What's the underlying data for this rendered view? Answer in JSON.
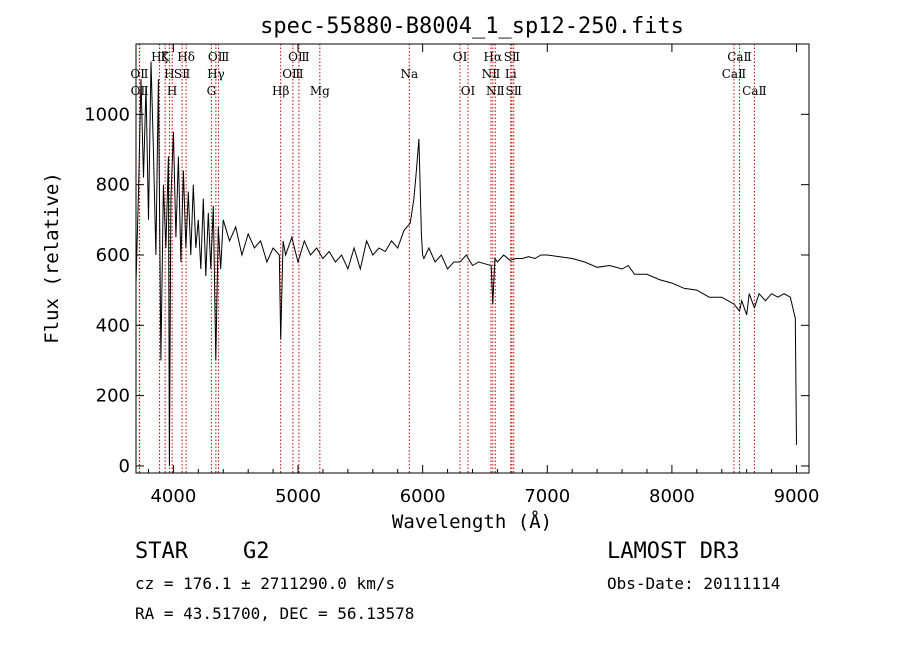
{
  "chart_data": {
    "type": "line",
    "title": "spec-55880-B8004_1_sp12-250.fits",
    "xlabel": "Wavelength (Å)",
    "ylabel": "Flux (relative)",
    "xlim": [
      3700,
      9100
    ],
    "ylim": [
      -20,
      1200
    ],
    "x_ticks": [
      4000,
      5000,
      6000,
      7000,
      8000,
      9000
    ],
    "y_ticks": [
      0,
      200,
      400,
      600,
      800,
      1000
    ],
    "series": [
      {
        "name": "flux",
        "color": "#000000",
        "x": [
          3700,
          3720,
          3740,
          3760,
          3780,
          3800,
          3820,
          3840,
          3860,
          3880,
          3900,
          3920,
          3940,
          3960,
          3968,
          3980,
          4000,
          4020,
          4040,
          4060,
          4080,
          4100,
          4120,
          4140,
          4160,
          4180,
          4200,
          4220,
          4240,
          4260,
          4280,
          4300,
          4320,
          4340,
          4360,
          4380,
          4400,
          4450,
          4500,
          4550,
          4600,
          4650,
          4700,
          4750,
          4800,
          4850,
          4861,
          4880,
          4900,
          4950,
          5000,
          5050,
          5100,
          5150,
          5200,
          5250,
          5300,
          5350,
          5400,
          5450,
          5500,
          5550,
          5600,
          5650,
          5700,
          5750,
          5800,
          5850,
          5900,
          5930,
          5950,
          5970,
          5990,
          6000,
          6010,
          6050,
          6100,
          6150,
          6200,
          6250,
          6300,
          6350,
          6400,
          6450,
          6500,
          6550,
          6563,
          6580,
          6600,
          6650,
          6700,
          6750,
          6800,
          6850,
          6900,
          6950,
          7000,
          7100,
          7200,
          7300,
          7400,
          7500,
          7600,
          7650,
          7700,
          7800,
          7900,
          8000,
          8100,
          8200,
          8300,
          8400,
          8450,
          8500,
          8542,
          8560,
          8600,
          8620,
          8662,
          8700,
          8750,
          8800,
          8850,
          8900,
          8950,
          8990,
          9000
        ],
        "values": [
          520,
          780,
          1100,
          820,
          1080,
          700,
          1150,
          900,
          600,
          1100,
          300,
          800,
          620,
          880,
          0,
          760,
          950,
          650,
          880,
          580,
          840,
          620,
          780,
          600,
          800,
          620,
          700,
          560,
          760,
          540,
          720,
          560,
          740,
          300,
          680,
          560,
          700,
          640,
          680,
          600,
          660,
          620,
          640,
          580,
          620,
          600,
          360,
          640,
          600,
          650,
          580,
          640,
          600,
          620,
          590,
          610,
          580,
          600,
          560,
          620,
          560,
          640,
          600,
          620,
          610,
          640,
          620,
          670,
          690,
          760,
          840,
          930,
          660,
          600,
          590,
          620,
          580,
          600,
          560,
          580,
          580,
          600,
          570,
          580,
          575,
          570,
          460,
          590,
          580,
          600,
          585,
          590,
          590,
          595,
          590,
          600,
          600,
          595,
          590,
          580,
          565,
          570,
          560,
          570,
          545,
          545,
          530,
          520,
          505,
          500,
          480,
          480,
          470,
          460,
          440,
          470,
          430,
          490,
          450,
          490,
          470,
          490,
          480,
          490,
          480,
          420,
          60
        ]
      }
    ],
    "lines": [
      {
        "name": "Hζ",
        "x": 3889,
        "row": 1
      },
      {
        "name": "K",
        "x": 3934,
        "row": 1
      },
      {
        "name": "OⅡ",
        "x": 3727,
        "row": 2
      },
      {
        "name": "H",
        "x": 3968,
        "row": 2
      },
      {
        "name": "SⅡ",
        "x": 4070,
        "row": 2
      },
      {
        "name": "OⅡ",
        "x": 3729,
        "row": 3
      },
      {
        "name": "H",
        "x": 3990,
        "row": 3
      },
      {
        "name": "Hδ",
        "x": 4102,
        "row": 1
      },
      {
        "name": "OⅢ",
        "x": 4363,
        "row": 1
      },
      {
        "name": "Hγ",
        "x": 4341,
        "row": 2
      },
      {
        "name": "G",
        "x": 4305,
        "row": 3
      },
      {
        "name": "Hβ",
        "x": 4861,
        "row": 3
      },
      {
        "name": "OⅢ",
        "x": 5007,
        "row": 1
      },
      {
        "name": "OⅢ",
        "x": 4959,
        "row": 2
      },
      {
        "name": "Mg",
        "x": 5175,
        "row": 3
      },
      {
        "name": "Na",
        "x": 5893,
        "row": 2
      },
      {
        "name": "OⅠ",
        "x": 6300,
        "row": 1
      },
      {
        "name": "OⅠ",
        "x": 6364,
        "row": 3
      },
      {
        "name": "Hα",
        "x": 6563,
        "row": 1
      },
      {
        "name": "SⅡ",
        "x": 6716,
        "row": 1
      },
      {
        "name": "NⅡ",
        "x": 6548,
        "row": 2
      },
      {
        "name": "Li",
        "x": 6707,
        "row": 2
      },
      {
        "name": "NⅡ",
        "x": 6583,
        "row": 3
      },
      {
        "name": "SⅡ",
        "x": 6731,
        "row": 3
      },
      {
        "name": "CaⅡ",
        "x": 8542,
        "row": 1
      },
      {
        "name": "CaⅡ",
        "x": 8498,
        "row": 2
      },
      {
        "name": "CaⅡ",
        "x": 8662,
        "row": 3
      }
    ],
    "line_color": "#cc0000"
  },
  "info": {
    "object_type": "STAR",
    "subclass": "G2",
    "survey": "LAMOST DR3",
    "redshift": "cz = 176.1 ± 2711290.0 km/s",
    "obs_date": "Obs-Date: 20111114",
    "coords": "RA =  43.51700, DEC =  56.13578"
  }
}
